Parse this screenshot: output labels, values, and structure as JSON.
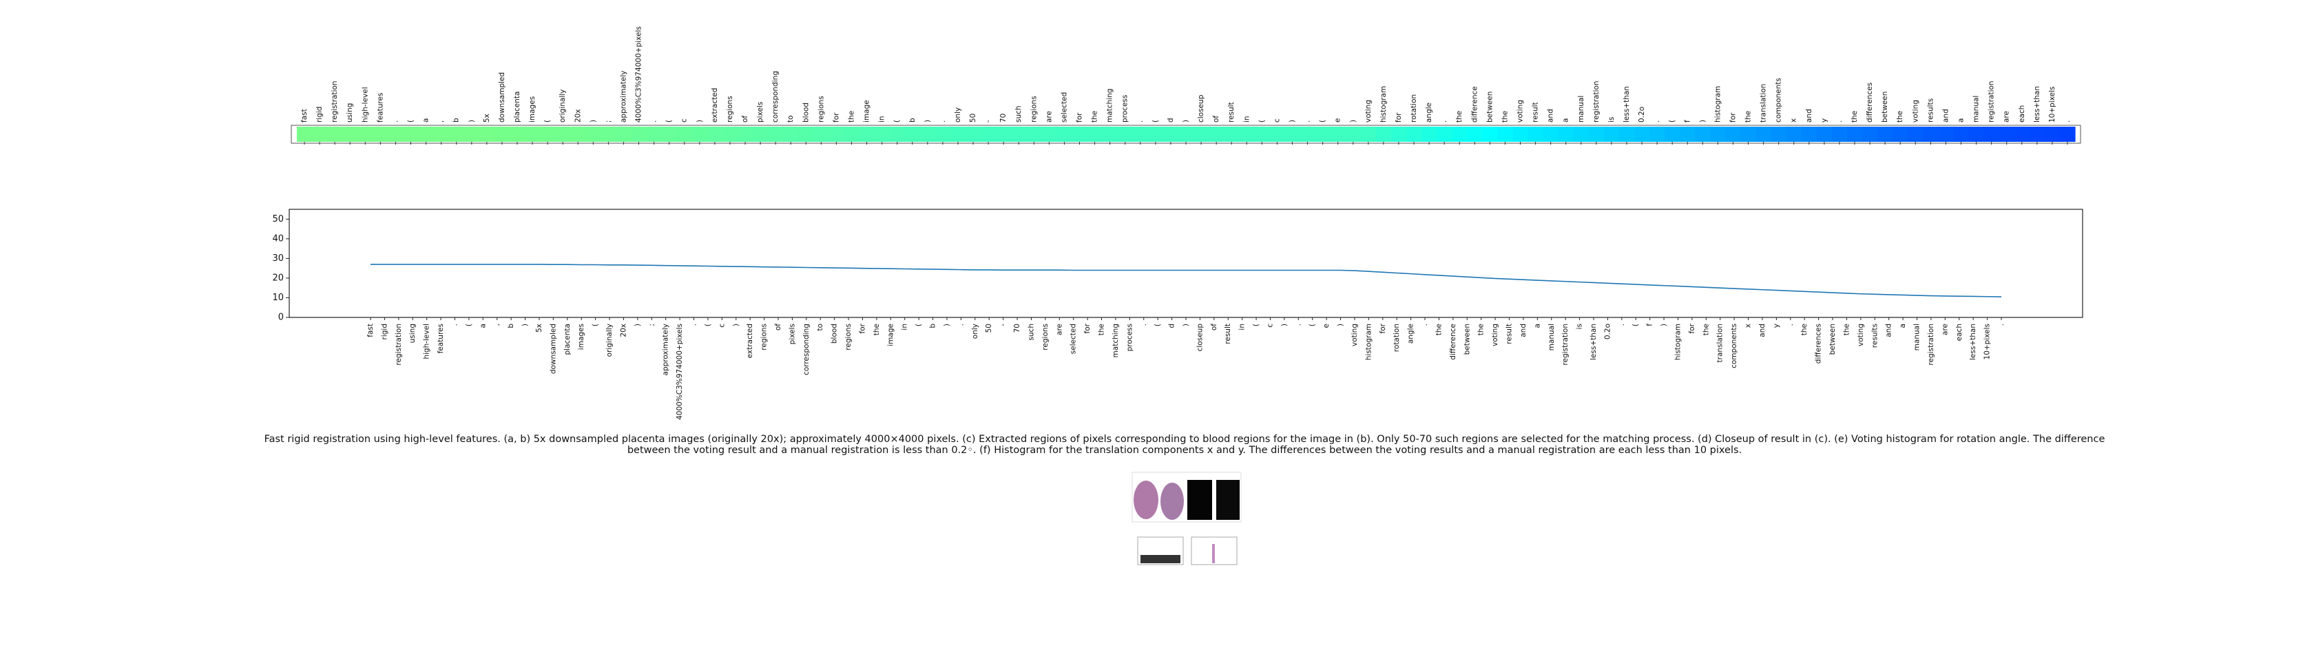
{
  "chart_data": {
    "type": "line",
    "caption": "Fast rigid registration using high-level features. (a, b) 5x downsampled placenta images (originally 20x); approximately 4000×4000 pixels. (c) Extracted regions of pixels corresponding to blood regions for the image in (b). Only 50-70 such regions are selected for the matching process. (d) Closeup of result in (c). (e) Voting histogram for rotation angle. The difference between the voting result and a manual registration is less than 0.2◦. (f) Histogram for the translation components x and y. The differences between the voting results and a manual registration are each less than 10 pixels.",
    "tokens": [
      "fast",
      "rigid",
      "registration",
      "using",
      "high-level",
      "features",
      ".",
      "(",
      "a",
      ",",
      "b",
      ")",
      "5x",
      "downsampled",
      "placenta",
      "images",
      "(",
      "originally",
      "20x",
      ")",
      ";",
      "approximately",
      "4000%C3%974000+pixels",
      ".",
      "(",
      "c",
      ")",
      "extracted",
      "regions",
      "of",
      "pixels",
      "corresponding",
      "to",
      "blood",
      "regions",
      "for",
      "the",
      "image",
      "in",
      "(",
      "b",
      ")",
      ".",
      "only",
      "50",
      "-",
      "70",
      "such",
      "regions",
      "are",
      "selected",
      "for",
      "the",
      "matching",
      "process",
      ".",
      "(",
      "d",
      ")",
      "closeup",
      "of",
      "result",
      "in",
      "(",
      "c",
      ")",
      ".",
      "(",
      "e",
      ")",
      "voting",
      "histogram",
      "for",
      "rotation",
      "angle",
      ".",
      "the",
      "difference",
      "between",
      "the",
      "voting",
      "result",
      "and",
      "a",
      "manual",
      "registration",
      "is",
      "less+than",
      "0.2o",
      ".",
      "(",
      "f",
      ")",
      "histogram",
      "for",
      "the",
      "translation",
      "components",
      "x",
      "and",
      "y",
      ".",
      "the",
      "differences",
      "between",
      "the",
      "voting",
      "results",
      "and",
      "a",
      "manual",
      "registration",
      "are",
      "each",
      "less+than",
      "10+pixels",
      "."
    ],
    "values": [
      27,
      27,
      27,
      27,
      27,
      27,
      27,
      27,
      27,
      27,
      27,
      27,
      27,
      26.9,
      26.9,
      26.8,
      26.8,
      26.7,
      26.7,
      26.6,
      26.5,
      26.4,
      26.3,
      26.2,
      26.1,
      26.0,
      25.9,
      25.8,
      25.7,
      25.6,
      25.5,
      25.4,
      25.3,
      25.2,
      25.1,
      25.0,
      24.9,
      24.8,
      24.7,
      24.6,
      24.5,
      24.4,
      24.3,
      24.2,
      24.2,
      24.1,
      24.1,
      24.1,
      24.1,
      24.1,
      24,
      24,
      24,
      24,
      24,
      24,
      24,
      24,
      24,
      24,
      24,
      24,
      24,
      24,
      24,
      24,
      24,
      24,
      24,
      24,
      23.8,
      23.4,
      23,
      22.6,
      22.2,
      21.8,
      21.4,
      21,
      20.6,
      20.2,
      19.8,
      19.5,
      19.2,
      18.9,
      18.6,
      18.3,
      18,
      17.7,
      17.4,
      17.1,
      16.8,
      16.5,
      16.2,
      15.9,
      15.6,
      15.3,
      15,
      14.7,
      14.4,
      14.1,
      13.8,
      13.5,
      13.2,
      12.9,
      12.6,
      12.3,
      12,
      11.8,
      11.6,
      11.4,
      11.2,
      11,
      10.9,
      10.8,
      10.7,
      10.6,
      10.5
    ],
    "color": "#1f77b4",
    "colormap": "jet",
    "ylim": [
      0,
      55
    ],
    "yticks": [
      0,
      10,
      20,
      30,
      40,
      50
    ]
  }
}
